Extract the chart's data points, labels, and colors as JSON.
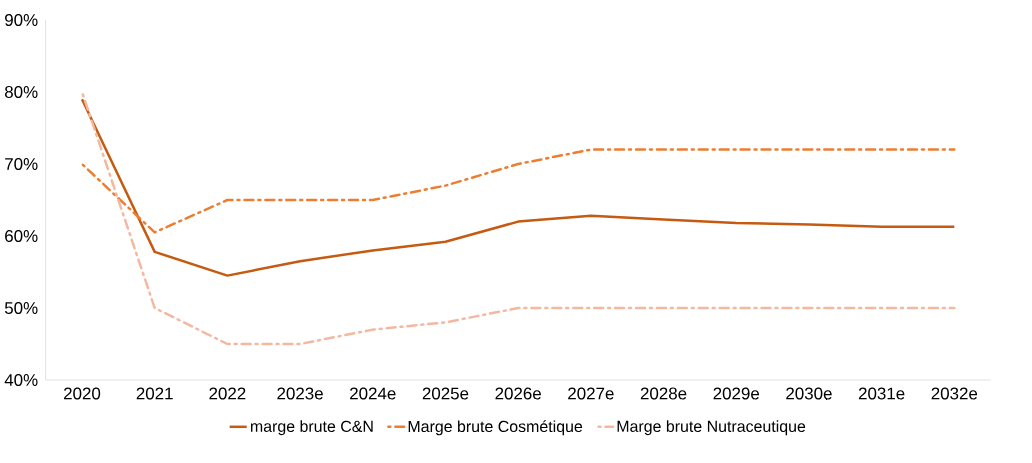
{
  "chart_data": {
    "type": "line",
    "categories": [
      "2020",
      "2021",
      "2022",
      "2023e",
      "2024e",
      "2025e",
      "2026e",
      "2027e",
      "2028e",
      "2029e",
      "2030e",
      "2031e",
      "2032e"
    ],
    "series": [
      {
        "name": "marge brute C&N",
        "color": "#c55a11",
        "line_style": "solid",
        "values": [
          79,
          57.8,
          54.5,
          56.5,
          58,
          59.2,
          62,
          62.8,
          62.3,
          61.8,
          61.6,
          61.3,
          61.3
        ]
      },
      {
        "name": "Marge brute Cosmétique",
        "color": "#ed7d31",
        "line_style": "dashed",
        "values": [
          70,
          60.5,
          65,
          65,
          65,
          67,
          70,
          72,
          72,
          72,
          72,
          72,
          72
        ]
      },
      {
        "name": "Marge brute Nutraceutique",
        "color": "#f4b8a0",
        "line_style": "dashed",
        "values": [
          80,
          50,
          45,
          45,
          47,
          48,
          50,
          50,
          50,
          50,
          50,
          50,
          50
        ]
      }
    ],
    "ylim": [
      40,
      90
    ],
    "yticks": [
      {
        "value": 40,
        "label": "40%"
      },
      {
        "value": 50,
        "label": "50%"
      },
      {
        "value": 60,
        "label": "60%"
      },
      {
        "value": 70,
        "label": "70%"
      },
      {
        "value": 80,
        "label": "80%"
      },
      {
        "value": 90,
        "label": "90%"
      }
    ],
    "grid": false,
    "legend": "bottom",
    "marker": "none"
  }
}
